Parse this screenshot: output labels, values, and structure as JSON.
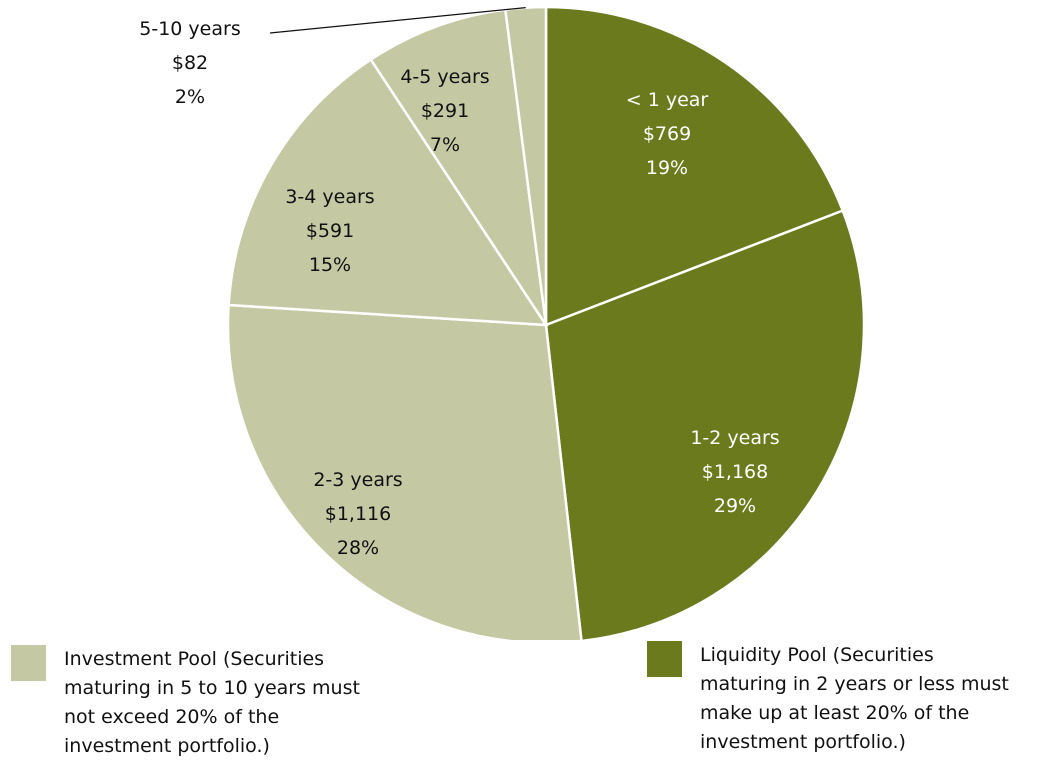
{
  "chart_data": {
    "type": "pie",
    "start_angle_deg": 0,
    "direction": "clockwise",
    "slices": [
      {
        "label": "< 1 year",
        "value": 769,
        "value_label": "$769",
        "percent_label": "19%",
        "pool": "liquidity"
      },
      {
        "label": "1-2 years",
        "value": 1168,
        "value_label": "$1,168",
        "percent_label": "29%",
        "pool": "liquidity"
      },
      {
        "label": "2-3 years",
        "value": 1116,
        "value_label": "$1,116",
        "percent_label": "28%",
        "pool": "investment"
      },
      {
        "label": "3-4 years",
        "value": 591,
        "value_label": "$591",
        "percent_label": "15%",
        "pool": "investment"
      },
      {
        "label": "4-5 years",
        "value": 291,
        "value_label": "$291",
        "percent_label": "7%",
        "pool": "investment"
      },
      {
        "label": "5-10 years",
        "value": 82,
        "value_label": "$82",
        "percent_label": "2%",
        "pool": "investment"
      }
    ],
    "pools": {
      "liquidity": {
        "color": "#6b7a1c",
        "label_color": "#ffffff"
      },
      "investment": {
        "color": "#c4c9a4",
        "label_color": "#111111"
      }
    },
    "legend": [
      {
        "pool": "investment",
        "text": "Investment Pool (Securities\nmaturing in 5 to 10 years must\nnot exceed 20% of the\ninvestment portfolio.)"
      },
      {
        "pool": "liquidity",
        "text": "Liquidity  Pool (Securities\nmaturing in 2 years or less must\nmake up at least 20% of the\ninvestment portfolio.)"
      }
    ]
  }
}
